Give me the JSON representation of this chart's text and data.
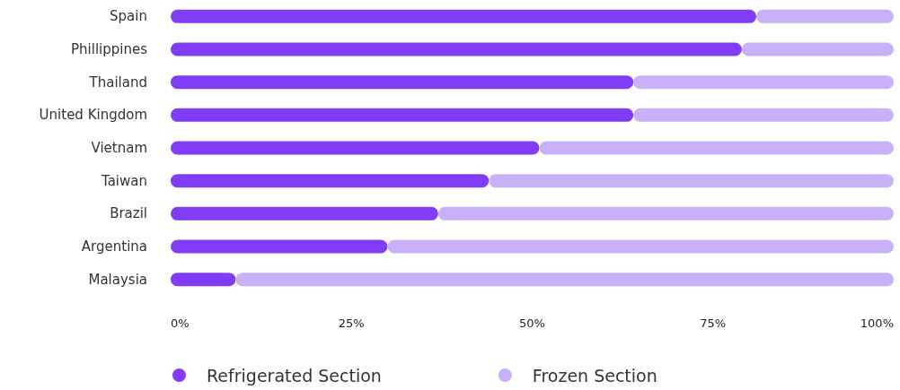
{
  "chart_data": {
    "type": "bar",
    "orientation": "horizontal",
    "stacked": true,
    "categories": [
      "Spain",
      "Phillippines",
      "Thailand",
      "United Kingdom",
      "Vietnam",
      "Taiwan",
      "Brazil",
      "Argentina",
      "Malaysia"
    ],
    "series": [
      {
        "name": "Refrigerated Section",
        "color": "#803df5",
        "values": [
          81,
          79,
          64,
          64,
          51,
          44,
          37,
          30,
          9
        ]
      },
      {
        "name": "Frozen Section",
        "color": "#c8b1f8",
        "values": [
          19,
          21,
          36,
          36,
          49,
          56,
          63,
          70,
          91
        ]
      }
    ],
    "xlim": [
      0,
      100
    ],
    "xticks": [
      {
        "value": 0,
        "label": "0%"
      },
      {
        "value": 25,
        "label": "25%"
      },
      {
        "value": 50,
        "label": "50%"
      },
      {
        "value": 75,
        "label": "75%"
      },
      {
        "value": 100,
        "label": "100%"
      }
    ],
    "grid": false,
    "legend": "bottom"
  }
}
